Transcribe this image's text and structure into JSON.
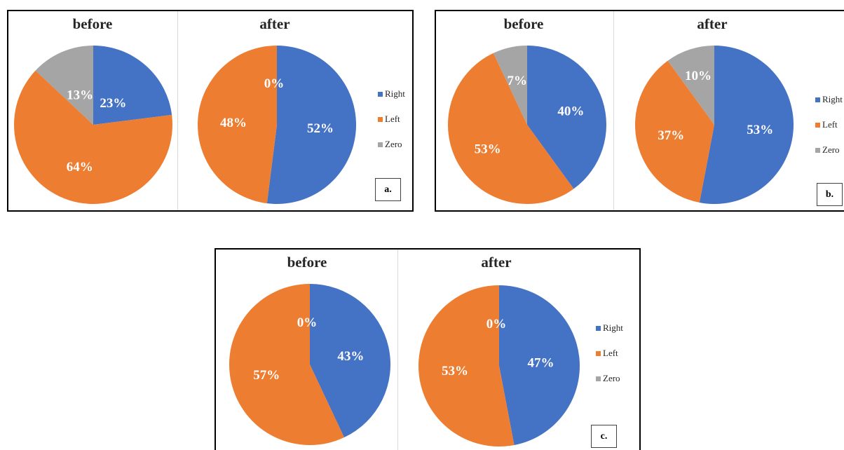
{
  "colors": {
    "Right": "#4472c4",
    "Left": "#ed7d31",
    "Zero": "#a5a5a5"
  },
  "legend": [
    "Right",
    "Left",
    "Zero"
  ],
  "panels": [
    {
      "id": "a",
      "label": "a.",
      "before_title": "before",
      "after_title": "after"
    },
    {
      "id": "b",
      "label": "b.",
      "before_title": "before",
      "after_title": "after"
    },
    {
      "id": "c",
      "label": "c.",
      "before_title": "before",
      "after_title": "after"
    }
  ],
  "chart_data": [
    {
      "type": "pie",
      "title": "before",
      "panel": "a.",
      "categories": [
        "Right",
        "Left",
        "Zero"
      ],
      "values": [
        23,
        64,
        13
      ],
      "labels": [
        "23%",
        "64%",
        "13%"
      ]
    },
    {
      "type": "pie",
      "title": "after",
      "panel": "a.",
      "categories": [
        "Right",
        "Left",
        "Zero"
      ],
      "values": [
        52,
        48,
        0
      ],
      "labels": [
        "52%",
        "48%",
        "0%"
      ]
    },
    {
      "type": "pie",
      "title": "before",
      "panel": "b.",
      "categories": [
        "Right",
        "Left",
        "Zero"
      ],
      "values": [
        40,
        53,
        7
      ],
      "labels": [
        "40%",
        "53%",
        "7%"
      ]
    },
    {
      "type": "pie",
      "title": "after",
      "panel": "b.",
      "categories": [
        "Right",
        "Left",
        "Zero"
      ],
      "values": [
        53,
        37,
        10
      ],
      "labels": [
        "53%",
        "37%",
        "10%"
      ]
    },
    {
      "type": "pie",
      "title": "before",
      "panel": "c.",
      "categories": [
        "Right",
        "Left",
        "Zero"
      ],
      "values": [
        43,
        57,
        0
      ],
      "labels": [
        "43%",
        "57%",
        "0%"
      ]
    },
    {
      "type": "pie",
      "title": "after",
      "panel": "c.",
      "categories": [
        "Right",
        "Left",
        "Zero"
      ],
      "values": [
        47,
        53,
        0
      ],
      "labels": [
        "47%",
        "53%",
        "0%"
      ]
    }
  ]
}
